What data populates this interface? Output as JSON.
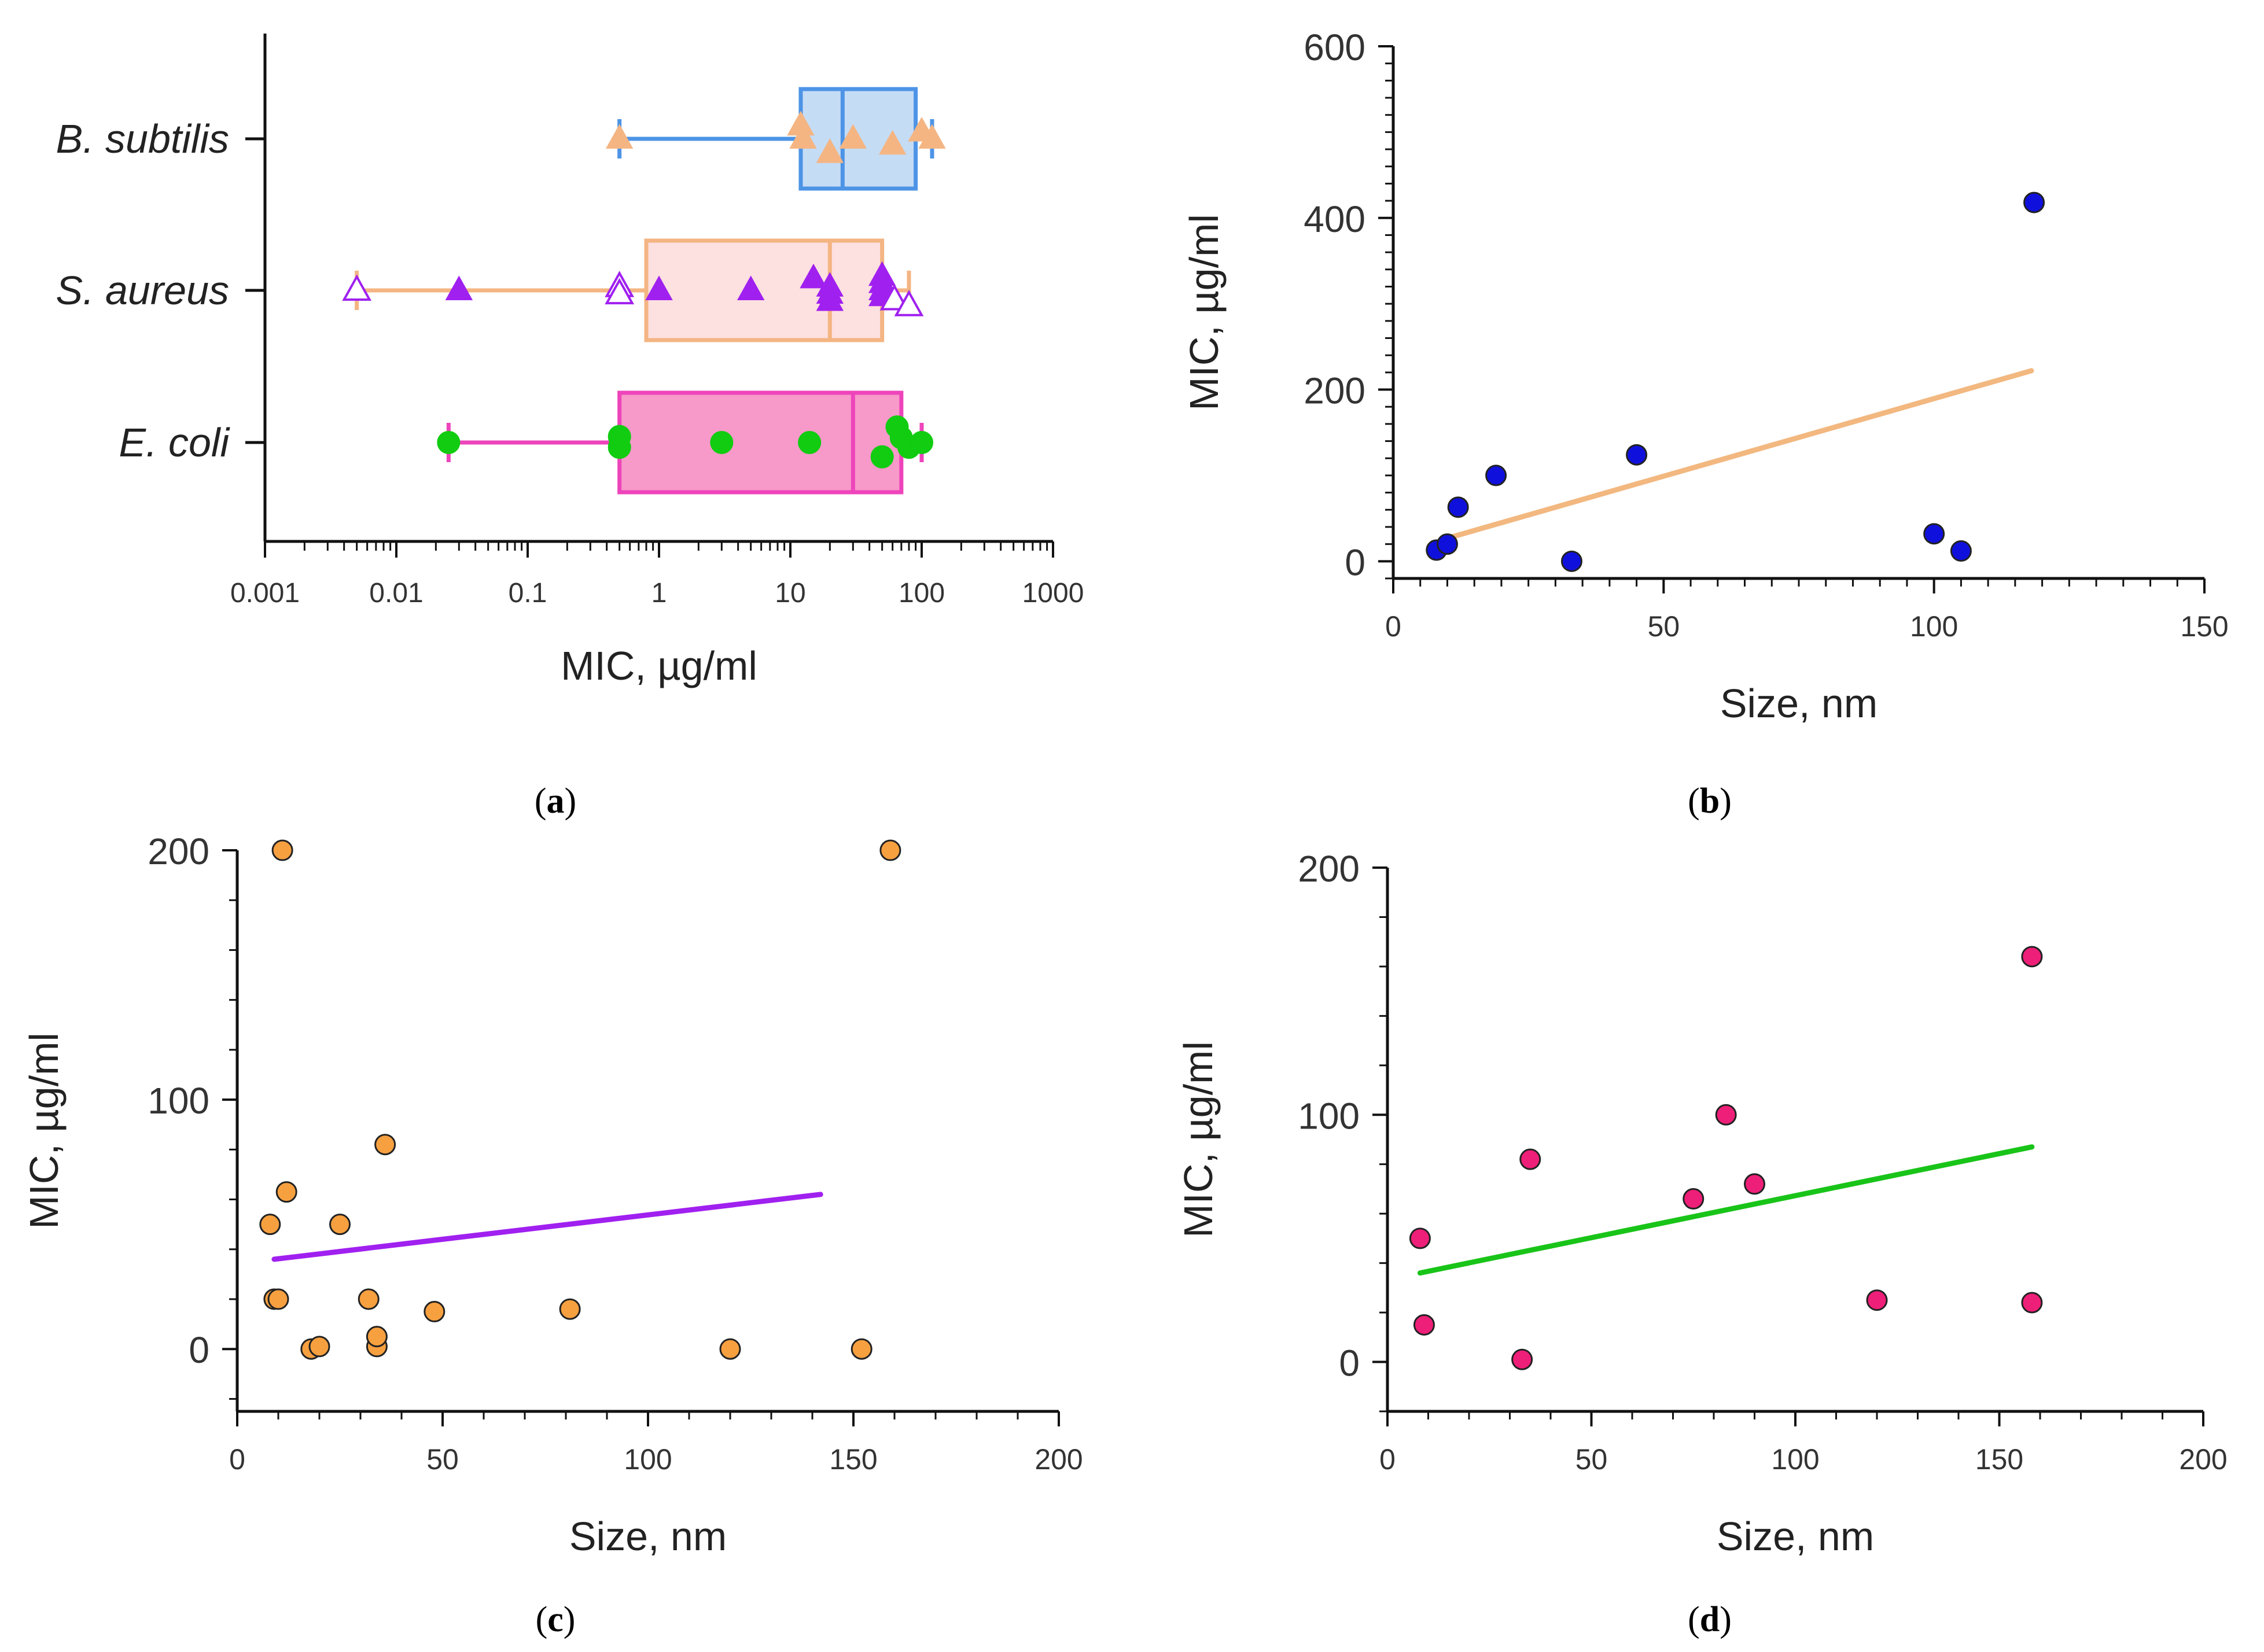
{
  "chart_data": [
    {
      "id": "a",
      "type": "box",
      "panel_label": "(a)",
      "panel_letter": "a",
      "xlabel": "MIC, µg/ml",
      "xscale": "log",
      "xlim": [
        0.001,
        1000
      ],
      "xticks": [
        {
          "v": 0.001,
          "label": "0.001"
        },
        {
          "v": 0.01,
          "label": "0.01"
        },
        {
          "v": 0.1,
          "label": "0.1"
        },
        {
          "v": 1,
          "label": "1"
        },
        {
          "v": 10,
          "label": "10"
        },
        {
          "v": 100,
          "label": "100"
        },
        {
          "v": 1000,
          "label": "1000"
        }
      ],
      "categories": [
        {
          "name": "B. subtilis",
          "color_box": "#c5dcf5",
          "color_edge": "#4d94e6",
          "box": {
            "whisker_low": 0.5,
            "q1": 12,
            "median": 25,
            "q3": 90,
            "whisker_high": 120
          },
          "marker": "triangle",
          "marker_color": "#f4b583",
          "points": [
            {
              "v": 0.5,
              "j": 0.0,
              "filled": true
            },
            {
              "v": 12,
              "j": 0.22,
              "filled": true
            },
            {
              "v": 12.5,
              "j": 0.0,
              "filled": true
            },
            {
              "v": 20,
              "j": -0.24,
              "filled": true
            },
            {
              "v": 30,
              "j": 0.0,
              "filled": true
            },
            {
              "v": 60,
              "j": -0.1,
              "filled": true
            },
            {
              "v": 100,
              "j": 0.12,
              "filled": true
            },
            {
              "v": 120,
              "j": 0.0,
              "filled": true
            }
          ]
        },
        {
          "name": "S. aureus",
          "color_box": "#fde0e0",
          "color_edge": "#f4b583",
          "box": {
            "whisker_low": 0.005,
            "q1": 0.8,
            "median": 20,
            "q3": 50,
            "whisker_high": 80
          },
          "marker": "triangle",
          "marker_color": "#a020f0",
          "points": [
            {
              "v": 0.005,
              "j": 0.0,
              "filled": false
            },
            {
              "v": 0.03,
              "j": 0.0,
              "filled": true
            },
            {
              "v": 0.5,
              "j": 0.06,
              "filled": false
            },
            {
              "v": 0.5,
              "j": -0.06,
              "filled": false
            },
            {
              "v": 1,
              "j": 0.0,
              "filled": true
            },
            {
              "v": 5,
              "j": 0.0,
              "filled": true
            },
            {
              "v": 15,
              "j": 0.2,
              "filled": true
            },
            {
              "v": 20,
              "j": 0.06,
              "filled": true
            },
            {
              "v": 20,
              "j": -0.06,
              "filled": true
            },
            {
              "v": 20,
              "j": -0.18,
              "filled": true
            },
            {
              "v": 50,
              "j": 0.24,
              "filled": true
            },
            {
              "v": 50,
              "j": 0.12,
              "filled": true
            },
            {
              "v": 50,
              "j": 0.0,
              "filled": true
            },
            {
              "v": 50,
              "j": -0.1,
              "filled": true
            },
            {
              "v": 62,
              "j": -0.16,
              "filled": false
            },
            {
              "v": 80,
              "j": -0.26,
              "filled": false
            }
          ]
        },
        {
          "name": "E. coli",
          "color_box": "#f799c9",
          "color_edge": "#ee44bb",
          "box": {
            "whisker_low": 0.025,
            "q1": 0.5,
            "median": 30,
            "q3": 70,
            "whisker_high": 100
          },
          "marker": "circle",
          "marker_color": "#11cc11",
          "points": [
            {
              "v": 0.025,
              "j": 0.0,
              "filled": true
            },
            {
              "v": 0.5,
              "j": 0.1,
              "filled": true
            },
            {
              "v": 0.5,
              "j": -0.08,
              "filled": true
            },
            {
              "v": 3,
              "j": 0.0,
              "filled": true
            },
            {
              "v": 14,
              "j": 0.0,
              "filled": true
            },
            {
              "v": 50,
              "j": -0.24,
              "filled": true
            },
            {
              "v": 65,
              "j": 0.26,
              "filled": true
            },
            {
              "v": 70,
              "j": 0.08,
              "filled": true
            },
            {
              "v": 80,
              "j": -0.08,
              "filled": true
            },
            {
              "v": 100,
              "j": 0.0,
              "filled": true
            }
          ]
        }
      ]
    },
    {
      "id": "b",
      "type": "scatter",
      "panel_label": "(b)",
      "panel_letter": "b",
      "xlabel": "Size, nm",
      "ylabel": "MIC, µg/ml",
      "xlim": [
        0,
        150
      ],
      "ylim": [
        -20,
        600
      ],
      "xticks": [
        0,
        50,
        100,
        150
      ],
      "yticks": [
        0,
        200,
        400,
        600
      ],
      "x_minor_step": 5,
      "y_minor_step": 20,
      "point_color": "#1010dd",
      "line_color": "#f2b880",
      "points": [
        [
          8,
          13
        ],
        [
          10,
          20
        ],
        [
          12,
          63
        ],
        [
          19,
          100
        ],
        [
          33,
          0
        ],
        [
          45,
          124
        ],
        [
          100,
          32
        ],
        [
          105,
          12
        ],
        [
          118.5,
          418
        ]
      ],
      "fit": [
        [
          9,
          25
        ],
        [
          118,
          222
        ]
      ]
    },
    {
      "id": "c",
      "type": "scatter",
      "panel_label": "(c)",
      "panel_letter": "c",
      "xlabel": "Size, nm",
      "ylabel": "MIC, µg/ml",
      "xlim": [
        0,
        200
      ],
      "ylim": [
        -25,
        200
      ],
      "xticks": [
        0,
        50,
        100,
        150,
        200
      ],
      "yticks": [
        0,
        100,
        200
      ],
      "x_minor_step": 10,
      "y_minor_step": 20,
      "point_color": "#f7a040",
      "line_color": "#a020f0",
      "points": [
        [
          8,
          50
        ],
        [
          9,
          20
        ],
        [
          10,
          20
        ],
        [
          11,
          200
        ],
        [
          12,
          63
        ],
        [
          18,
          0
        ],
        [
          20,
          1
        ],
        [
          25,
          50
        ],
        [
          32,
          20
        ],
        [
          34,
          1
        ],
        [
          34,
          5
        ],
        [
          36,
          82
        ],
        [
          48,
          15
        ],
        [
          81,
          16
        ],
        [
          120,
          0
        ],
        [
          152,
          0
        ],
        [
          159,
          200
        ]
      ],
      "fit": [
        [
          9,
          36
        ],
        [
          142,
          62
        ]
      ]
    },
    {
      "id": "d",
      "type": "scatter",
      "panel_label": "(d)",
      "panel_letter": "d",
      "xlabel": "Size, nm",
      "ylabel": "MIC, µg/ml",
      "xlim": [
        0,
        200
      ],
      "ylim": [
        -20,
        200
      ],
      "xticks": [
        0,
        50,
        100,
        150,
        200
      ],
      "yticks": [
        0,
        100,
        200
      ],
      "x_minor_step": 10,
      "y_minor_step": 20,
      "point_color": "#ee1f78",
      "line_color": "#19c419",
      "points": [
        [
          8,
          50
        ],
        [
          9,
          15
        ],
        [
          33,
          1
        ],
        [
          35,
          82
        ],
        [
          75,
          66
        ],
        [
          83,
          100
        ],
        [
          90,
          72
        ],
        [
          120,
          25
        ],
        [
          158,
          24
        ],
        [
          158,
          164
        ]
      ],
      "fit": [
        [
          8,
          36
        ],
        [
          158,
          87
        ]
      ]
    }
  ]
}
